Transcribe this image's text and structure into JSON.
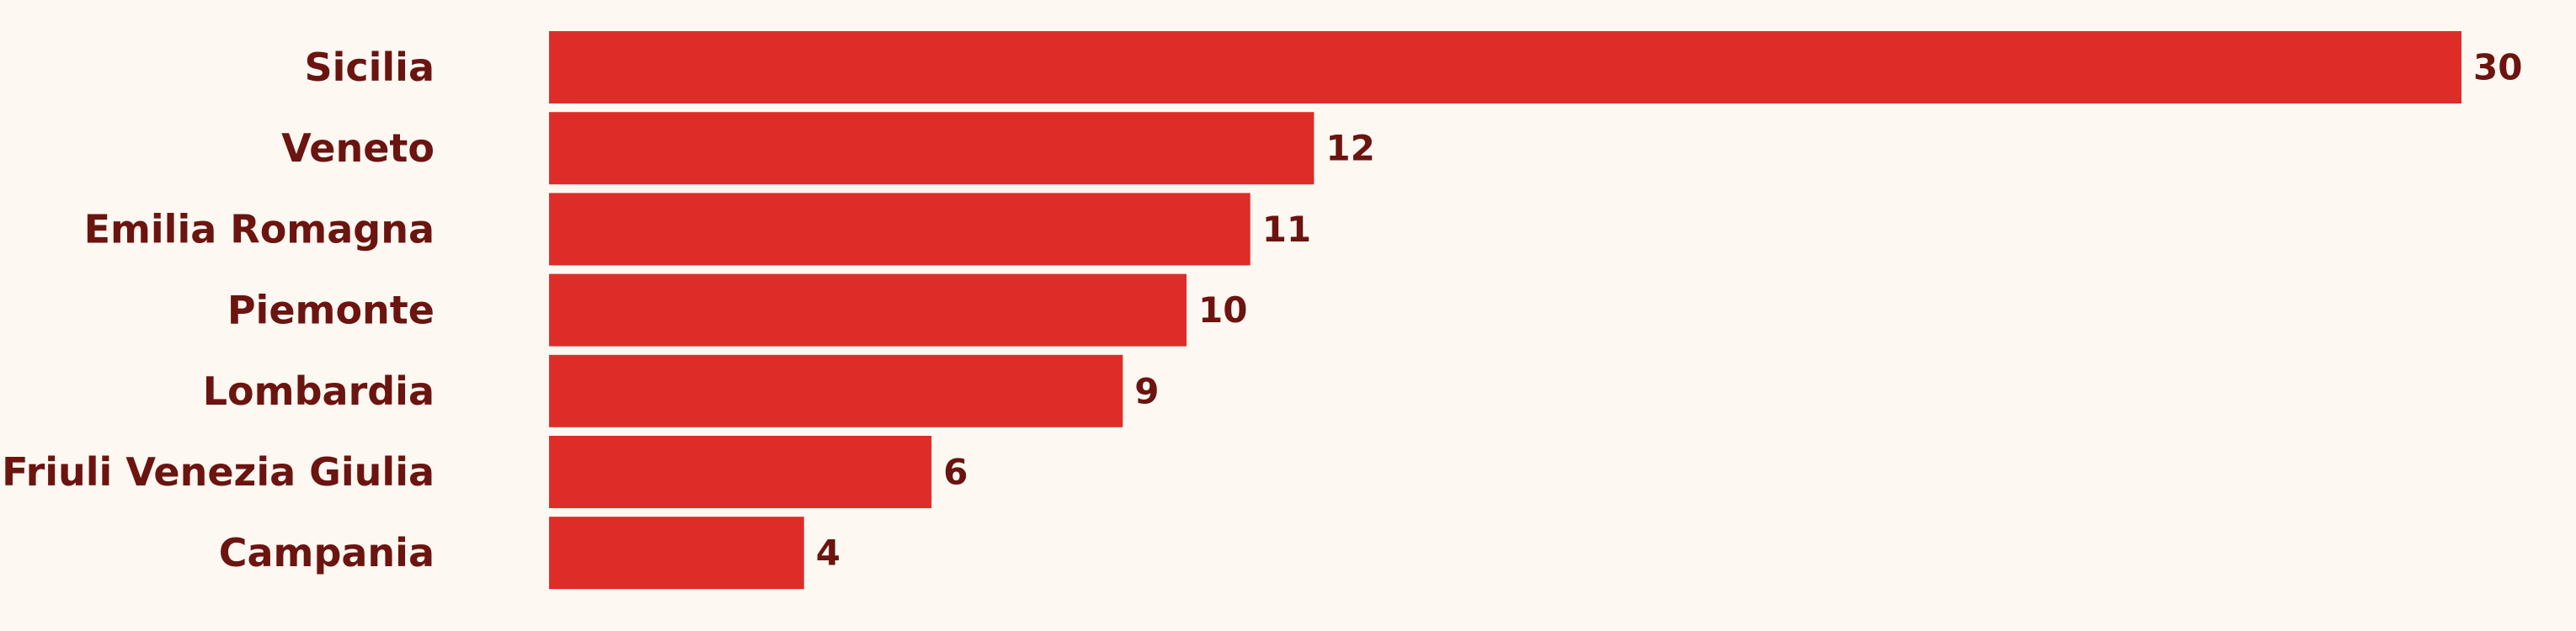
{
  "colors": {
    "background": "#fdf8f2",
    "bar": "#de2d28",
    "text": "#6b1410"
  },
  "chart_data": {
    "type": "bar",
    "orientation": "horizontal",
    "title": "",
    "xlabel": "",
    "ylabel": "",
    "grid": false,
    "legend": "none",
    "xlim": [
      0,
      30
    ],
    "categories": [
      "Sicilia",
      "Veneto",
      "Emilia Romagna",
      "Piemonte",
      "Lombardia",
      "Friuli Venezia Giulia",
      "Campania"
    ],
    "values": [
      30,
      12,
      11,
      10,
      9,
      6,
      4
    ],
    "data_labels": [
      "30",
      "12",
      "11",
      "10",
      "9",
      "6",
      "4"
    ]
  }
}
